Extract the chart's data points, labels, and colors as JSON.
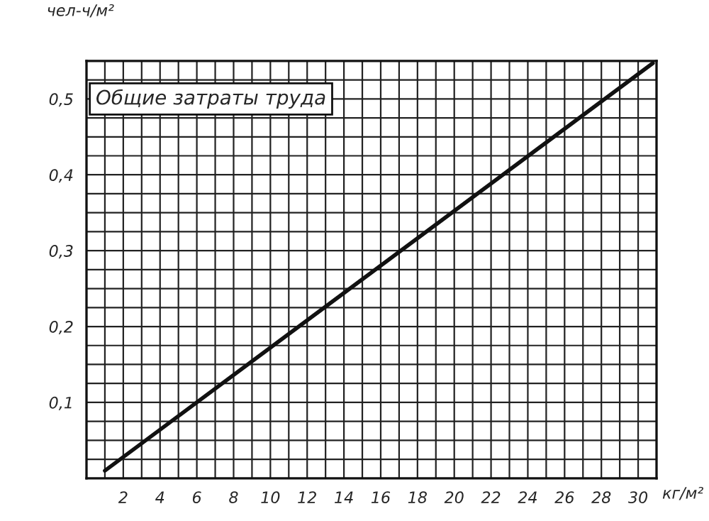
{
  "chart_data": {
    "type": "line",
    "annotations": [
      "Общие затраты труда"
    ],
    "xlabel": "кг/м²",
    "ylabel": "чел-ч/м²",
    "x": [
      1,
      30.8
    ],
    "series": [
      {
        "color": "#111111",
        "values": [
          0.01,
          0.547
        ]
      }
    ],
    "xlim": [
      0,
      31
    ],
    "ylim": [
      0,
      0.55
    ],
    "xticks": [
      {
        "value": 1,
        "label": null
      },
      2,
      {
        "value": 3,
        "label": null
      },
      4,
      {
        "value": 5,
        "label": null
      },
      6,
      {
        "value": 7,
        "label": null
      },
      8,
      {
        "value": 9,
        "label": null
      },
      10,
      {
        "value": 11,
        "label": null
      },
      12,
      {
        "value": 13,
        "label": null
      },
      14,
      {
        "value": 15,
        "label": null
      },
      16,
      {
        "value": 17,
        "label": null
      },
      18,
      {
        "value": 19,
        "label": null
      },
      20,
      {
        "value": 21,
        "label": null
      },
      22,
      {
        "value": 23,
        "label": null
      },
      24,
      {
        "value": 25,
        "label": null
      },
      26,
      {
        "value": 27,
        "label": null
      },
      28,
      {
        "value": 29,
        "label": null
      },
      30
    ],
    "yticks": [
      {
        "value": 0.025,
        "label": null
      },
      {
        "value": 0.05,
        "label": null
      },
      {
        "value": 0.075,
        "label": null
      },
      {
        "value": 0.1,
        "label": "0,1"
      },
      {
        "value": 0.125,
        "label": null
      },
      {
        "value": 0.15,
        "label": null
      },
      {
        "value": 0.175,
        "label": null
      },
      {
        "value": 0.2,
        "label": "0,2"
      },
      {
        "value": 0.225,
        "label": null
      },
      {
        "value": 0.25,
        "label": null
      },
      {
        "value": 0.275,
        "label": null
      },
      {
        "value": 0.3,
        "label": "0,3"
      },
      {
        "value": 0.325,
        "label": null
      },
      {
        "value": 0.35,
        "label": null
      },
      {
        "value": 0.375,
        "label": null
      },
      {
        "value": 0.4,
        "label": "0,4"
      },
      {
        "value": 0.425,
        "label": null
      },
      {
        "value": 0.45,
        "label": null
      },
      {
        "value": 0.475,
        "label": null
      },
      {
        "value": 0.5,
        "label": "0,5"
      },
      {
        "value": 0.525,
        "label": null
      }
    ],
    "grid": true,
    "marker": "none",
    "line_style": "solid"
  }
}
